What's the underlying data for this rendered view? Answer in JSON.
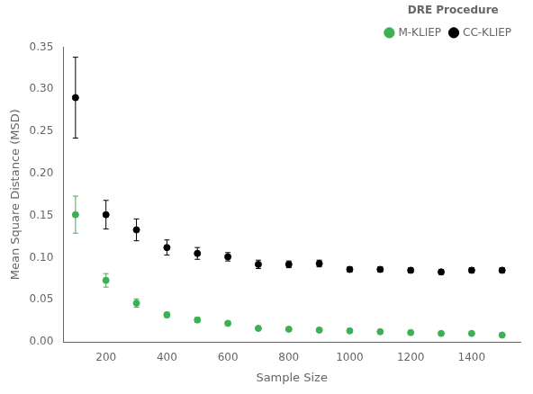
{
  "chart_data": {
    "type": "scatter",
    "x_label": "Sample Size",
    "y_label": "Mean Square Distance (MSD)",
    "legend_title": "DRE Procedure",
    "x": [
      100,
      200,
      300,
      400,
      500,
      600,
      700,
      800,
      900,
      1000,
      1100,
      1200,
      1300,
      1400,
      1500
    ],
    "series": [
      {
        "name": "M-KLIEP",
        "color": "#3cb054",
        "marker": "circle",
        "line_style": "none",
        "values": [
          0.151,
          0.073,
          0.046,
          0.032,
          0.026,
          0.022,
          0.016,
          0.015,
          0.014,
          0.013,
          0.012,
          0.011,
          0.01,
          0.01,
          0.008
        ],
        "yerr": [
          0.022,
          0.008,
          0.005,
          0.003,
          0.003,
          0.002,
          0.002,
          0.002,
          0.002,
          0.001,
          0.001,
          0.001,
          0.001,
          0.001,
          0.001
        ]
      },
      {
        "name": "CC-KLIEP",
        "color": "#000000",
        "marker": "circle",
        "line_style": "none",
        "values": [
          0.29,
          0.151,
          0.133,
          0.112,
          0.105,
          0.101,
          0.092,
          0.092,
          0.093,
          0.086,
          0.086,
          0.085,
          0.083,
          0.085,
          0.085
        ],
        "yerr": [
          0.048,
          0.017,
          0.013,
          0.009,
          0.007,
          0.005,
          0.005,
          0.004,
          0.004,
          0.003,
          0.003,
          0.003,
          0.003,
          0.003,
          0.003
        ]
      }
    ],
    "xlim": [
      60,
      1560
    ],
    "xticks": [
      200,
      400,
      600,
      800,
      1000,
      1200,
      1400
    ],
    "ylim": [
      0,
      0.35
    ],
    "yticks": [
      {
        "value": 0,
        "label": "0.00"
      },
      {
        "value": 0.05,
        "label": "0.05"
      },
      {
        "value": 0.1,
        "label": "0.10"
      },
      {
        "value": 0.15,
        "label": "0.15"
      },
      {
        "value": 0.2,
        "label": "0.20"
      },
      {
        "value": 0.25,
        "label": "0.25"
      },
      {
        "value": 0.3,
        "label": "0.30"
      },
      {
        "value": 0.35,
        "label": "0.35"
      }
    ],
    "grid": false,
    "legend": "upper right"
  }
}
